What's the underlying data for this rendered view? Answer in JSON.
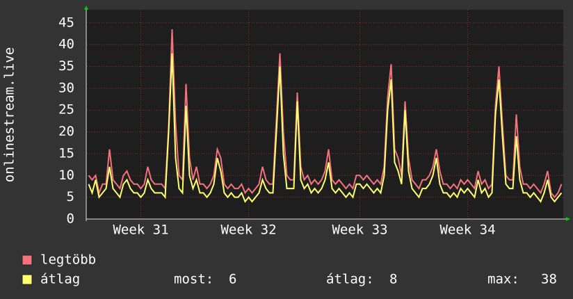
{
  "chart_data": {
    "type": "line",
    "y_label": "onlinestream.live",
    "categories": [
      null,
      null,
      null,
      null,
      null,
      null,
      null,
      null,
      null,
      null,
      null,
      null,
      null,
      null,
      null,
      "Week 31",
      null,
      null,
      null,
      null,
      null,
      null,
      null,
      null,
      null,
      null,
      null,
      null,
      null,
      null,
      null,
      null,
      null,
      null,
      null,
      null,
      null,
      null,
      null,
      null,
      null,
      null,
      null,
      null,
      null,
      null,
      "Week 32",
      null,
      null,
      null,
      null,
      null,
      null,
      null,
      null,
      null,
      null,
      null,
      null,
      null,
      null,
      null,
      null,
      null,
      null,
      null,
      null,
      null,
      null,
      null,
      null,
      null,
      null,
      null,
      null,
      null,
      null,
      null,
      "Week 33",
      null,
      null,
      null,
      null,
      null,
      null,
      null,
      null,
      null,
      null,
      null,
      null,
      null,
      null,
      null,
      null,
      null,
      null,
      null,
      null,
      null,
      null,
      null,
      null,
      null,
      null,
      null,
      null,
      null,
      null,
      "Week 34",
      null,
      null,
      null,
      null,
      null,
      null,
      null,
      null,
      null,
      null,
      null,
      null,
      null,
      null,
      null,
      null,
      null,
      null,
      null,
      null,
      null,
      null,
      null,
      null,
      null,
      null,
      null
    ],
    "series": [
      {
        "name": "legtöbb",
        "color": "#f4727c",
        "values": [
          10,
          9,
          10,
          6,
          8,
          8,
          16,
          9,
          8,
          7,
          10,
          11,
          9,
          8,
          8,
          7,
          8,
          12,
          9,
          8,
          8,
          8,
          7,
          21,
          43.5,
          22,
          10,
          9,
          31,
          14,
          9,
          12,
          8,
          8,
          7,
          8,
          10,
          16,
          14,
          8,
          7,
          8,
          7,
          7,
          8,
          6,
          7,
          6,
          7,
          8,
          12,
          9,
          8,
          8,
          23,
          38,
          20,
          10,
          9,
          9,
          29,
          12,
          9,
          10,
          8,
          9,
          8,
          9,
          11,
          16,
          9,
          8,
          9,
          8,
          7,
          8,
          7,
          10,
          10,
          9,
          10,
          9,
          8,
          9,
          8,
          12,
          28,
          35.5,
          16,
          14,
          10,
          27,
          14,
          9,
          8,
          7,
          9,
          9,
          10,
          12,
          16,
          11,
          8,
          8,
          7,
          8,
          7,
          9,
          8,
          9,
          8,
          7,
          11,
          8,
          9,
          7,
          8,
          26,
          35,
          22,
          10,
          9,
          9,
          24,
          12,
          8,
          8,
          7,
          8,
          7,
          6,
          8,
          11,
          6,
          5,
          6,
          8
        ]
      },
      {
        "name": "átlag",
        "color": "#ffff72",
        "values": [
          8,
          6,
          9,
          5,
          6,
          7,
          12,
          7,
          6,
          5,
          8,
          9,
          7,
          6,
          6,
          5,
          6,
          9,
          7,
          6,
          6,
          6,
          5,
          20,
          38,
          14,
          7,
          6,
          26,
          10,
          7,
          9,
          6,
          6,
          5,
          6,
          8,
          14,
          11,
          6,
          5,
          6,
          5,
          5,
          6,
          4,
          5,
          4,
          5,
          6,
          9,
          7,
          6,
          6,
          20,
          35,
          15,
          7,
          7,
          7,
          27,
          9,
          7,
          8,
          6,
          7,
          6,
          7,
          9,
          13,
          7,
          6,
          7,
          6,
          5,
          6,
          5,
          8,
          8,
          7,
          8,
          7,
          6,
          7,
          6,
          10,
          25,
          32,
          13,
          11,
          8,
          25,
          11,
          7,
          6,
          5,
          7,
          7,
          8,
          10,
          14,
          8,
          6,
          6,
          5,
          6,
          5,
          7,
          6,
          7,
          6,
          5,
          9,
          6,
          7,
          5,
          6,
          24,
          32,
          19,
          8,
          7,
          7,
          19,
          9,
          6,
          6,
          5,
          6,
          5,
          4,
          6,
          9,
          5,
          4,
          5,
          6
        ]
      }
    ],
    "stats": [
      {
        "label": "most:",
        "value": 6
      },
      {
        "label": "átlag:",
        "value": 8
      },
      {
        "label": "max:",
        "value": 38
      }
    ],
    "ylim": [
      0,
      48
    ],
    "yticks": [
      0,
      5,
      10,
      15,
      20,
      25,
      30,
      35,
      40,
      45
    ],
    "grid": true
  }
}
